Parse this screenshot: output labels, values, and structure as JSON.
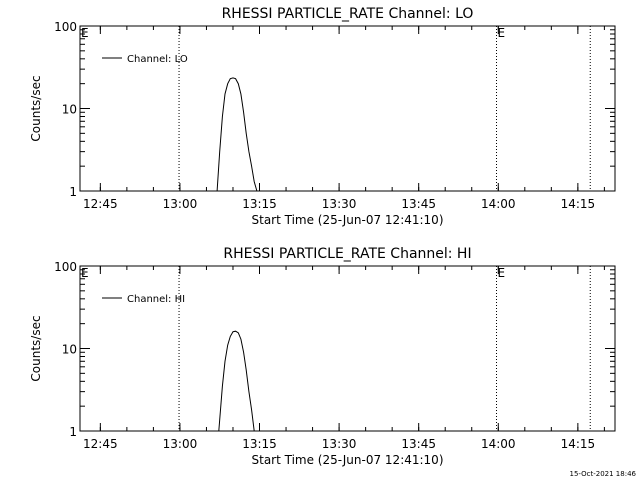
{
  "footer": {
    "timestamp": "15-Oct-2021 18:46"
  },
  "chart_data": [
    {
      "type": "line",
      "title": "RHESSI PARTICLE_RATE Channel: LO",
      "xlabel": "Start Time (25-Jun-07 12:41:10)",
      "ylabel": "Counts/sec",
      "y_scale": "log",
      "ylim": [
        1,
        100
      ],
      "y_ticks": [
        "1",
        "10",
        "100"
      ],
      "xlim": [
        "12:41:10",
        "14:22:00"
      ],
      "x_ticks": [
        "12:45",
        "13:00",
        "13:15",
        "13:30",
        "13:45",
        "14:00",
        "14:15"
      ],
      "legend": {
        "placement": "top-left",
        "entries": [
          "Channel: LO"
        ]
      },
      "series": [
        {
          "name": "Channel: LO",
          "x": [
            "13:07:00",
            "13:07:30",
            "13:08:00",
            "13:08:30",
            "13:09:00",
            "13:09:30",
            "13:10:00",
            "13:10:30",
            "13:11:00",
            "13:11:30",
            "13:12:00",
            "13:12:30",
            "13:13:00",
            "13:13:30",
            "13:14:00",
            "13:14:30"
          ],
          "values": [
            1,
            3,
            8,
            15,
            20,
            23,
            23.5,
            23,
            20,
            15,
            9,
            5,
            3,
            2,
            1.3,
            1
          ]
        }
      ],
      "markers": [
        {
          "time": "12:59:50",
          "label": ""
        },
        {
          "time": "13:59:40",
          "label": "E"
        },
        {
          "time": "14:17:20",
          "label": ""
        }
      ],
      "corner_label": "E",
      "grid": false
    },
    {
      "type": "line",
      "title": "RHESSI PARTICLE_RATE Channel: HI",
      "xlabel": "Start Time (25-Jun-07 12:41:10)",
      "ylabel": "Counts/sec",
      "y_scale": "log",
      "ylim": [
        1,
        100
      ],
      "y_ticks": [
        "1",
        "10",
        "100"
      ],
      "xlim": [
        "12:41:10",
        "14:22:00"
      ],
      "x_ticks": [
        "12:45",
        "13:00",
        "13:15",
        "13:30",
        "13:45",
        "14:00",
        "14:15"
      ],
      "legend": {
        "placement": "top-left",
        "entries": [
          "Channel: HI"
        ]
      },
      "series": [
        {
          "name": "Channel: HI",
          "x": [
            "13:07:20",
            "13:08:00",
            "13:08:30",
            "13:09:00",
            "13:09:30",
            "13:10:00",
            "13:10:30",
            "13:11:00",
            "13:11:30",
            "13:12:00",
            "13:12:30",
            "13:13:00",
            "13:13:30",
            "13:14:00"
          ],
          "values": [
            1,
            3.5,
            7,
            11,
            14,
            16,
            16.2,
            15.5,
            13,
            9,
            5.5,
            3,
            1.8,
            1
          ]
        }
      ],
      "markers": [
        {
          "time": "12:59:50",
          "label": ""
        },
        {
          "time": "13:59:40",
          "label": "E"
        },
        {
          "time": "14:17:20",
          "label": ""
        }
      ],
      "corner_label": "E",
      "grid": false
    }
  ]
}
